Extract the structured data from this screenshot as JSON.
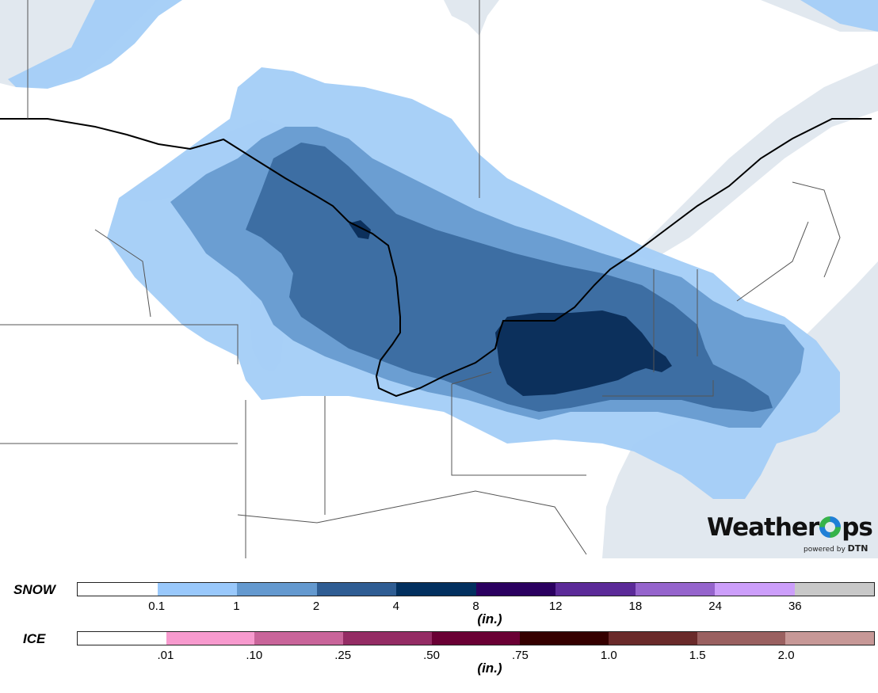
{
  "map": {
    "description_regions": "Great Lakes and Northeast US snowfall accumulation",
    "colors": {
      "land": "#ffffff",
      "water": "#e1e8ef",
      "snow_0_1": "#a3cdf7",
      "snow_1": "#6b9ed2",
      "snow_2": "#3d6ea3",
      "snow_4": "#0c305c",
      "borders": "#000000"
    }
  },
  "logo": {
    "brand_prefix": "Weather",
    "brand_suffix": "ps",
    "powered_by": "powered by",
    "partner": "DTN"
  },
  "legend": {
    "snow": {
      "label": "SNOW",
      "unit": "(in.)",
      "colors": [
        "#ffffff",
        "#99c8fb",
        "#6499cf",
        "#2f5d93",
        "#02305f",
        "#2b0060",
        "#5b2a98",
        "#9564cc",
        "#cc9efa",
        "#c8c8c8"
      ],
      "ticks": [
        "0.1",
        "1",
        "2",
        "4",
        "8",
        "12",
        "18",
        "24",
        "36"
      ]
    },
    "ice": {
      "label": "ICE",
      "unit": "(in.)",
      "colors": [
        "#ffffff",
        "#f79ace",
        "#c9659a",
        "#942c64",
        "#6a0034",
        "#350000",
        "#6a2a2a",
        "#9a6060",
        "#c79897"
      ],
      "ticks": [
        ".01",
        ".10",
        ".25",
        ".50",
        ".75",
        "1.0",
        "1.5",
        "2.0"
      ]
    }
  }
}
